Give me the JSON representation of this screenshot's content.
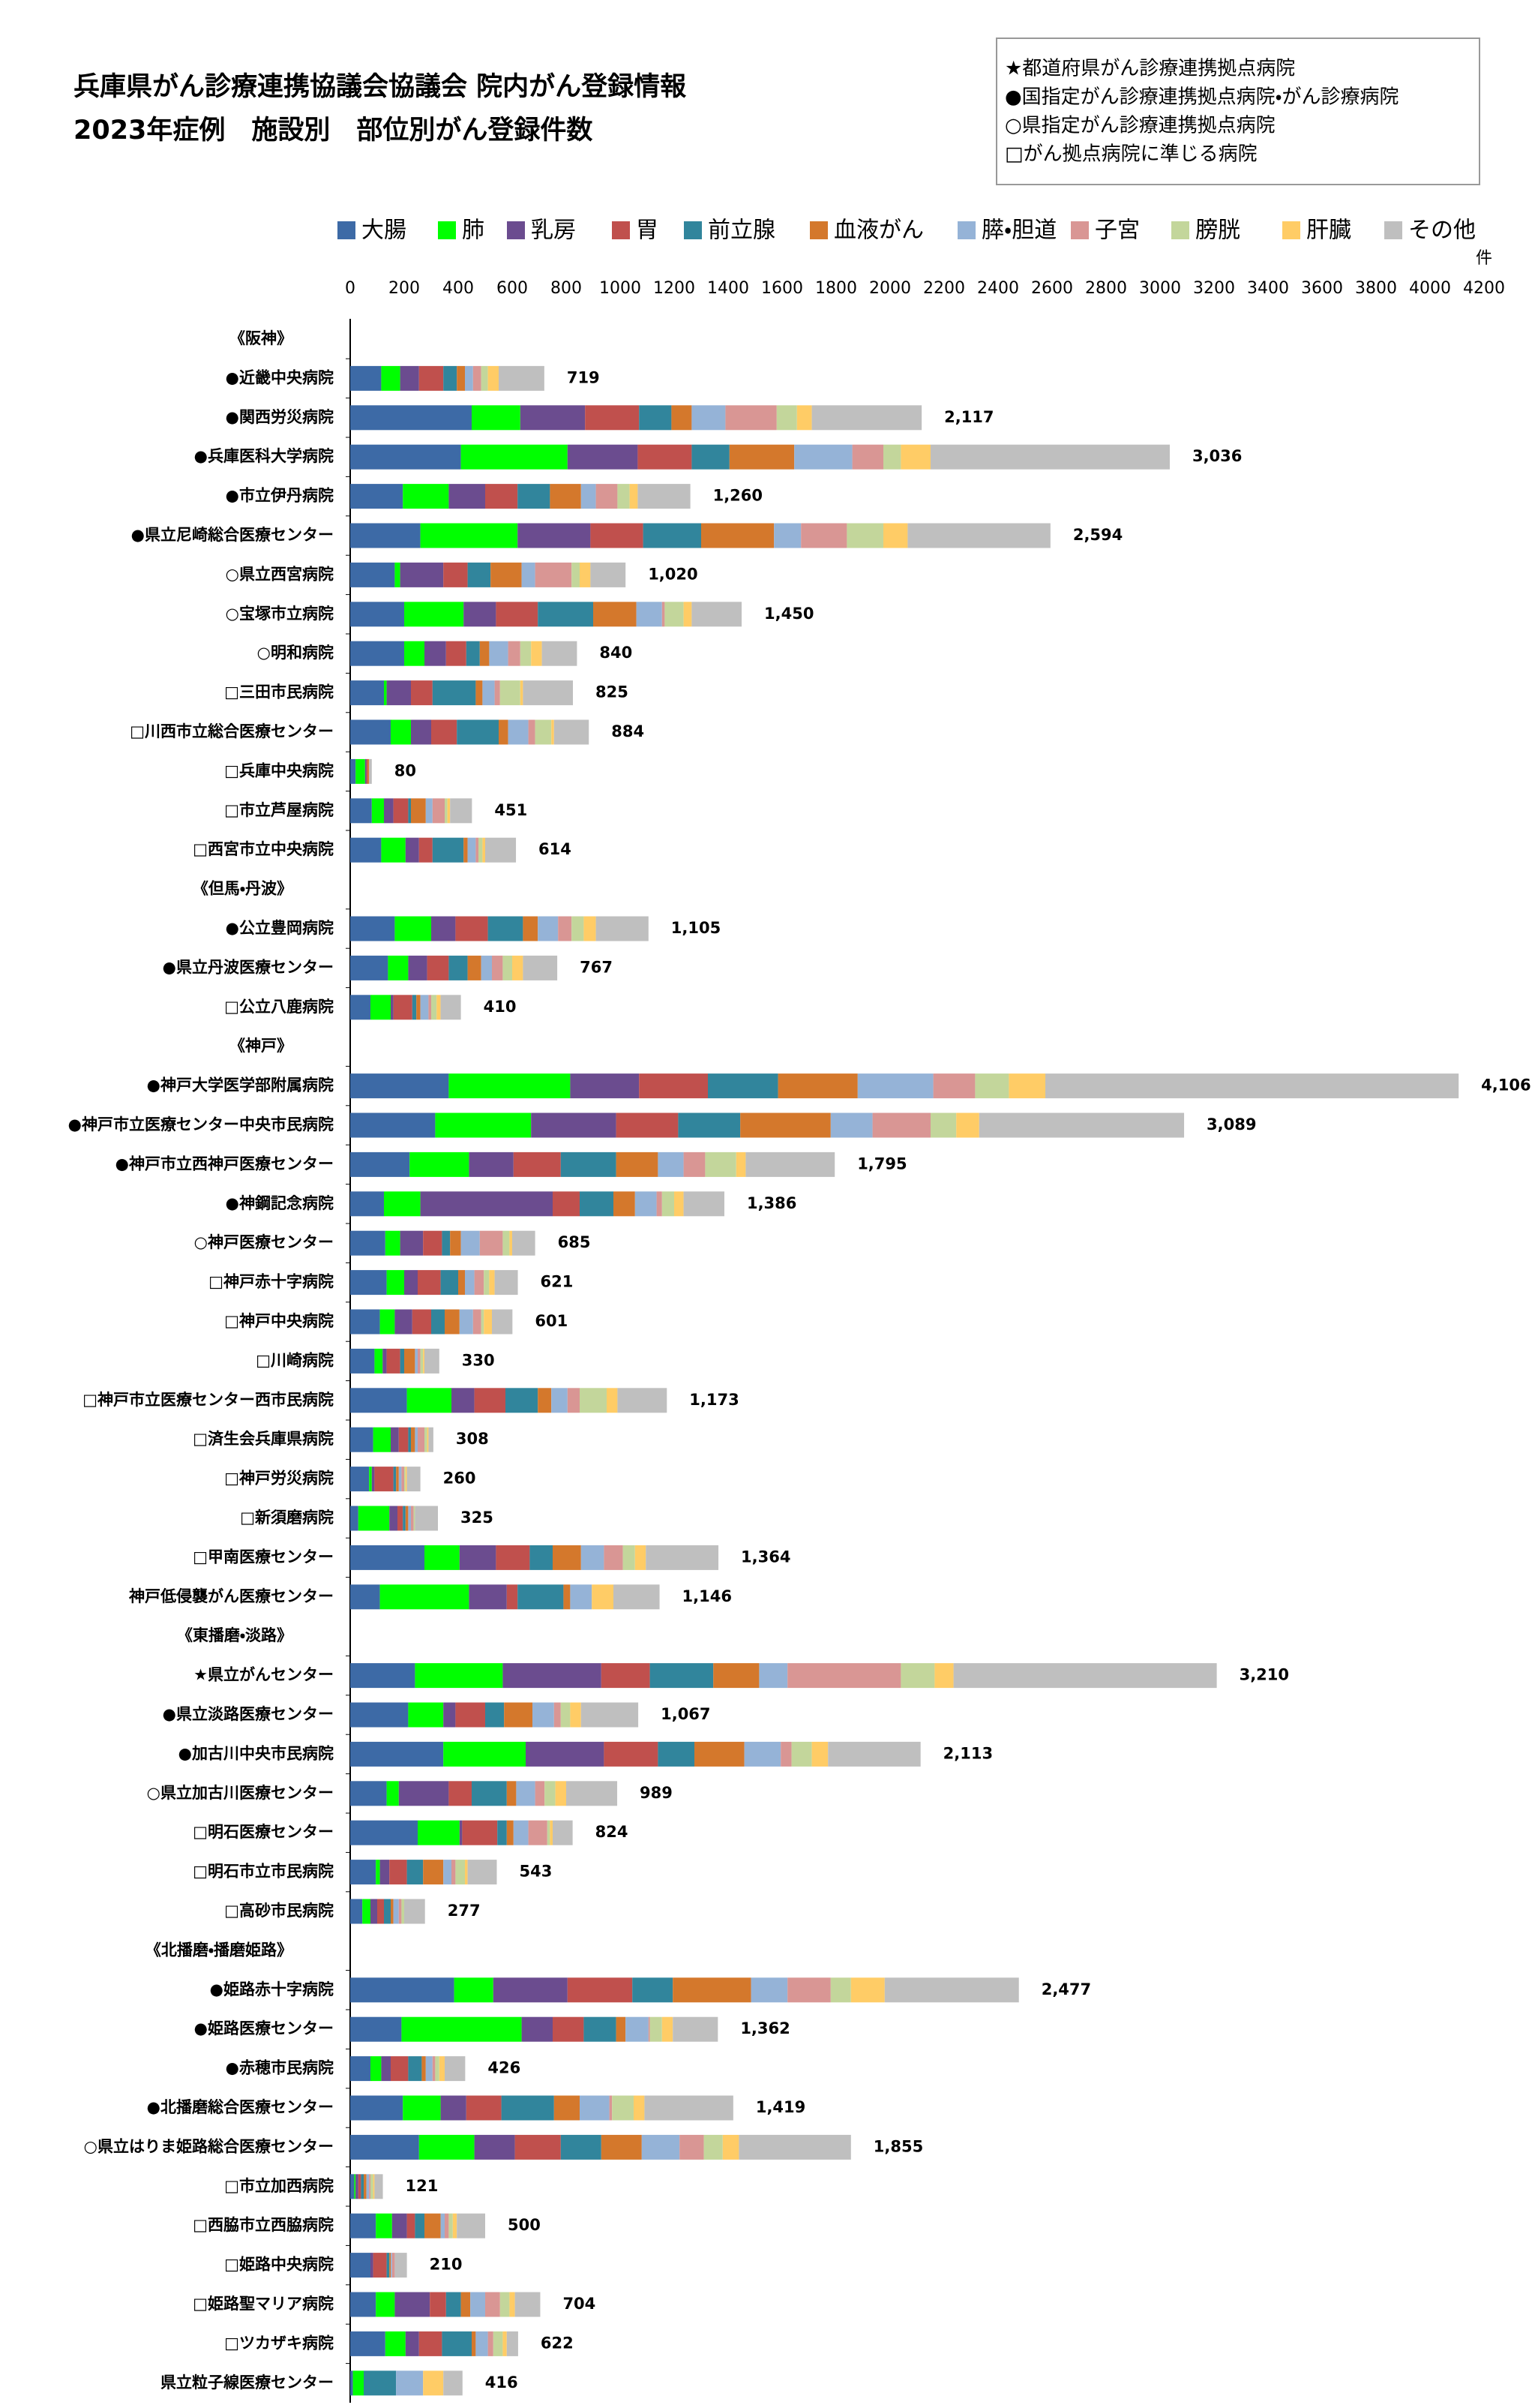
{
  "chart_data": {
    "type": "bar",
    "orientation": "horizontal",
    "stacked": true,
    "title_lines": [
      "兵庫県がん診療連携協議会協議会 院内がん登録情報",
      "2023年症例　施設別　部位別がん登録件数"
    ],
    "notes": [
      "★都道府県がん診療連携拠点病院",
      "●国指定がん診療連携拠点病院・がん診療病院",
      "○県指定がん診療連携拠点病院",
      "□がん拠点病院に準じる病院"
    ],
    "x_unit": "件",
    "xlim": [
      0,
      4200
    ],
    "xticks": [
      0,
      200,
      400,
      600,
      800,
      1000,
      1200,
      1400,
      1600,
      1800,
      2000,
      2200,
      2400,
      2600,
      2800,
      3000,
      3200,
      3400,
      3600,
      3800,
      4000,
      4200
    ],
    "categories": [
      "《阪神》",
      "●近畿中央病院",
      "●関西労災病院",
      "●兵庫医科大学病院",
      "●市立伊丹病院",
      "●県立尼崎総合医療センター",
      "○県立西宮病院",
      "○宝塚市立病院",
      "○明和病院",
      "□三田市民病院",
      "□川西市立総合医療センター",
      "□兵庫中央病院",
      "□市立芦屋病院",
      "□西宮市立中央病院",
      "《但馬・丹波》",
      "●公立豊岡病院",
      "●県立丹波医療センター",
      "□公立八鹿病院",
      "《神戸》",
      "●神戸大学医学部附属病院",
      "●神戸市立医療センター中央市民病院",
      "●神戸市立西神戸医療センター",
      "●神鋼記念病院",
      "○神戸医療センター",
      "□神戸赤十字病院",
      "□神戸中央病院",
      "□川崎病院",
      "□神戸市立医療センター西市民病院",
      "□済生会兵庫県病院",
      "□神戸労災病院",
      "□新須磨病院",
      "□甲南医療センター",
      "神戸低侵襲がん医療センター",
      "《東播磨・淡路》",
      "★県立がんセンター",
      "●県立淡路医療センター",
      "●加古川中央市民病院",
      "○県立加古川医療センター",
      "□明石医療センター",
      "□明石市立市民病院",
      "□高砂市民病院",
      "《北播磨・播磨姫路》",
      "●姫路赤十字病院",
      "●姫路医療センター",
      "●赤穂市民病院",
      "●北播磨総合医療センター",
      "○県立はりま姫路総合医療センター",
      "□市立加西病院",
      "□西脇市立西脇病院",
      "□姫路中央病院",
      "□姫路聖マリア病院",
      "□ツカザキ病院",
      "県立粒子線医療センター"
    ],
    "series": [
      {
        "name": "大腸",
        "color": "#3d6aa6",
        "values": [
          null,
          115,
          450,
          410,
          195,
          260,
          165,
          200,
          200,
          125,
          150,
          20,
          80,
          115,
          null,
          165,
          140,
          75,
          null,
          365,
          315,
          220,
          125,
          130,
          135,
          110,
          90,
          210,
          85,
          70,
          30,
          275,
          110,
          null,
          240,
          215,
          345,
          135,
          250,
          95,
          45,
          null,
          385,
          190,
          75,
          195,
          255,
          15,
          95,
          75,
          95,
          130,
          10
        ]
      },
      {
        "name": "肺",
        "color": "#00ff00",
        "values": [
          null,
          70,
          180,
          395,
          170,
          360,
          20,
          220,
          75,
          10,
          75,
          35,
          45,
          90,
          null,
          135,
          75,
          75,
          null,
          450,
          355,
          220,
          135,
          55,
          65,
          55,
          30,
          165,
          65,
          10,
          115,
          130,
          330,
          null,
          325,
          130,
          305,
          45,
          155,
          15,
          30,
          null,
          145,
          445,
          40,
          140,
          205,
          5,
          60,
          0,
          70,
          75,
          40
        ]
      },
      {
        "name": "乳房",
        "color": "#6b4c8f",
        "values": [
          null,
          70,
          240,
          260,
          135,
          270,
          160,
          120,
          80,
          90,
          75,
          5,
          35,
          50,
          null,
          90,
          70,
          10,
          null,
          255,
          315,
          165,
          490,
          85,
          50,
          65,
          15,
          85,
          30,
          10,
          30,
          135,
          140,
          null,
          365,
          45,
          290,
          185,
          10,
          35,
          25,
          null,
          275,
          115,
          35,
          95,
          150,
          10,
          55,
          10,
          130,
          50,
          0
        ]
      },
      {
        "name": "胃",
        "color": "#c0504d",
        "values": [
          null,
          90,
          200,
          200,
          120,
          195,
          90,
          155,
          75,
          80,
          95,
          5,
          55,
          50,
          null,
          120,
          80,
          70,
          null,
          255,
          230,
          175,
          100,
          70,
          85,
          70,
          50,
          115,
          35,
          70,
          20,
          125,
          40,
          null,
          180,
          110,
          200,
          85,
          130,
          65,
          25,
          null,
          240,
          115,
          65,
          130,
          170,
          10,
          30,
          50,
          60,
          85,
          0
        ]
      },
      {
        "name": "前立腺",
        "color": "#31859c",
        "values": [
          null,
          50,
          120,
          140,
          120,
          215,
          85,
          205,
          50,
          160,
          155,
          0,
          10,
          115,
          null,
          130,
          70,
          15,
          null,
          260,
          230,
          205,
          125,
          30,
          65,
          50,
          15,
          120,
          10,
          10,
          10,
          85,
          170,
          null,
          235,
          70,
          135,
          130,
          35,
          60,
          25,
          null,
          150,
          120,
          50,
          195,
          150,
          10,
          35,
          10,
          55,
          110,
          120
        ]
      },
      {
        "name": "血液がん",
        "color": "#d4782c",
        "values": [
          null,
          30,
          75,
          240,
          115,
          270,
          115,
          160,
          35,
          25,
          35,
          5,
          55,
          15,
          null,
          55,
          50,
          15,
          null,
          295,
          335,
          155,
          80,
          40,
          25,
          55,
          40,
          50,
          15,
          10,
          10,
          105,
          25,
          null,
          170,
          105,
          185,
          35,
          25,
          75,
          10,
          null,
          290,
          35,
          15,
          95,
          150,
          10,
          60,
          5,
          35,
          15,
          0
        ]
      },
      {
        "name": "膵・胆道",
        "color": "#95b3d7",
        "values": [
          null,
          30,
          125,
          215,
          55,
          100,
          50,
          95,
          70,
          45,
          75,
          0,
          25,
          30,
          null,
          75,
          40,
          30,
          null,
          280,
          155,
          95,
          80,
          70,
          35,
          50,
          10,
          60,
          10,
          10,
          10,
          85,
          80,
          null,
          105,
          80,
          135,
          70,
          55,
          30,
          20,
          null,
          135,
          85,
          25,
          110,
          140,
          10,
          15,
          5,
          55,
          45,
          100
        ]
      },
      {
        "name": "子宮",
        "color": "#d99694",
        "values": [
          null,
          30,
          190,
          115,
          80,
          170,
          135,
          10,
          45,
          20,
          25,
          0,
          45,
          10,
          null,
          50,
          40,
          10,
          null,
          155,
          215,
          80,
          20,
          85,
          35,
          30,
          10,
          45,
          25,
          10,
          10,
          70,
          0,
          null,
          420,
          25,
          40,
          35,
          70,
          15,
          10,
          null,
          160,
          5,
          10,
          10,
          90,
          5,
          15,
          10,
          55,
          20,
          0
        ]
      },
      {
        "name": "膀胱",
        "color": "#c3d69b",
        "values": [
          null,
          25,
          75,
          65,
          45,
          135,
          30,
          70,
          40,
          75,
          60,
          0,
          10,
          15,
          null,
          45,
          35,
          20,
          null,
          125,
          95,
          115,
          45,
          25,
          20,
          10,
          10,
          100,
          10,
          5,
          5,
          45,
          0,
          null,
          125,
          35,
          75,
          40,
          10,
          35,
          10,
          null,
          75,
          45,
          15,
          80,
          70,
          10,
          15,
          0,
          35,
          35,
          0
        ]
      },
      {
        "name": "肝臓",
        "color": "#ffcc66",
        "values": [
          null,
          40,
          55,
          110,
          30,
          90,
          40,
          30,
          40,
          10,
          10,
          0,
          10,
          10,
          null,
          45,
          40,
          15,
          null,
          135,
          85,
          35,
          35,
          10,
          20,
          30,
          5,
          40,
          5,
          5,
          0,
          40,
          80,
          null,
          70,
          40,
          60,
          40,
          10,
          10,
          0,
          null,
          125,
          40,
          20,
          40,
          60,
          5,
          15,
          0,
          20,
          15,
          75
        ]
      },
      {
        "name": "その他",
        "color": "#bfbfbf",
        "values": [
          null,
          169,
          407,
          886,
          195,
          529,
          130,
          185,
          130,
          185,
          129,
          10,
          81,
          114,
          null,
          195,
          127,
          75,
          null,
          1531,
          759,
          330,
          151,
          85,
          86,
          76,
          55,
          183,
          18,
          50,
          85,
          269,
          171,
          null,
          975,
          212,
          343,
          189,
          74,
          108,
          77,
          null,
          497,
          167,
          76,
          329,
          415,
          31,
          105,
          45,
          94,
          42,
          71
        ]
      }
    ],
    "totals": {
      "values": [
        null,
        719,
        2117,
        3036,
        1260,
        2594,
        1020,
        1450,
        840,
        825,
        884,
        80,
        451,
        614,
        null,
        1105,
        767,
        410,
        null,
        4106,
        3089,
        1795,
        1386,
        685,
        621,
        601,
        330,
        1173,
        308,
        260,
        325,
        1364,
        1146,
        null,
        3210,
        1067,
        2113,
        989,
        824,
        543,
        277,
        null,
        2477,
        1362,
        426,
        1419,
        1855,
        121,
        500,
        210,
        704,
        622,
        416
      ],
      "value_labels": [
        null,
        "719",
        "2,117",
        "3,036",
        "1,260",
        "2,594",
        "1,020",
        "1,450",
        "840",
        "825",
        "884",
        "80",
        "451",
        "614",
        null,
        "1,105",
        "767",
        "410",
        null,
        "4,106",
        "3,089",
        "1,795",
        "1,386",
        "685",
        "621",
        "601",
        "330",
        "1,173",
        "308",
        "260",
        "325",
        "1,364",
        "1,146",
        null,
        "3,210",
        "1,067",
        "2,113",
        "989",
        "824",
        "543",
        "277",
        null,
        "2,477",
        "1,362",
        "426",
        "1,419",
        "1,855",
        "121",
        "500",
        "210",
        "704",
        "622",
        "416"
      ]
    },
    "legend": "top",
    "grid": false
  }
}
